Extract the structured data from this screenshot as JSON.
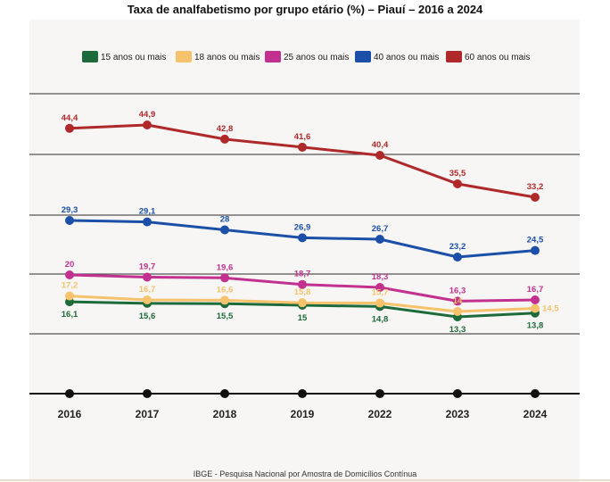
{
  "title": "Taxa de analfabetismo por grupo etário (%) – Piauí – 2016 a 2024",
  "source": "IBGE - Pesquisa Nacional por Amostra de Domicílios Contínua",
  "chart_data": {
    "type": "line",
    "title": "Taxa de analfabetismo por grupo etário (%) – Piauí – 2016 a 2024",
    "xlabel": "",
    "ylabel": "",
    "categories": [
      "2016",
      "2017",
      "2018",
      "2019",
      "2022",
      "2023",
      "2024"
    ],
    "grid": true,
    "legend_position": "top",
    "series": [
      {
        "name": "15 anos ou mais",
        "color": "#1d6b3a",
        "values": [
          16.1,
          15.6,
          15.5,
          15,
          14.8,
          13.3,
          13.8
        ],
        "labels": [
          "16,1",
          "15,6",
          "15,5",
          "15",
          "14,8",
          "13,3",
          "13,8"
        ],
        "label_pos": [
          "below",
          "below",
          "below",
          "below",
          "below",
          "below",
          "below"
        ]
      },
      {
        "name": "18 anos ou mais",
        "color": "#f6c26b",
        "values": [
          17.2,
          16.7,
          16.6,
          15.8,
          15.7,
          14,
          14.5
        ],
        "labels": [
          "17,2",
          "16,7",
          "16,6",
          "15,8",
          "15,7",
          "14",
          "14,5"
        ],
        "label_pos": [
          "above",
          "above",
          "above",
          "above",
          "above",
          "above",
          "right"
        ]
      },
      {
        "name": "25 anos ou mais",
        "color": "#c2318f",
        "values": [
          20,
          19.7,
          19.6,
          18.7,
          18.3,
          16.3,
          16.7
        ],
        "labels": [
          "20",
          "19,7",
          "19,6",
          "18,7",
          "18,3",
          "16,3",
          "16,7"
        ],
        "label_pos": [
          "above",
          "above",
          "above",
          "above",
          "above",
          "above",
          "above"
        ]
      },
      {
        "name": "40 anos ou mais",
        "color": "#1b4fa8",
        "values": [
          29.3,
          29.1,
          28,
          26.9,
          26.7,
          23.2,
          24.5
        ],
        "labels": [
          "29,3",
          "29,1",
          "28",
          "26,9",
          "26,7",
          "23,2",
          "24,5"
        ],
        "label_pos": [
          "above",
          "above",
          "above",
          "above",
          "above",
          "above",
          "above"
        ]
      },
      {
        "name": "60 anos ou mais",
        "color": "#b0292a",
        "values": [
          44.4,
          44.9,
          42.8,
          41.6,
          40.4,
          35.5,
          33.2
        ],
        "labels": [
          "44,4",
          "44,9",
          "42,8",
          "41,6",
          "40,4",
          "35,5",
          "33,2"
        ],
        "label_pos": [
          "above",
          "above",
          "above",
          "above",
          "above",
          "above",
          "above"
        ]
      }
    ]
  }
}
